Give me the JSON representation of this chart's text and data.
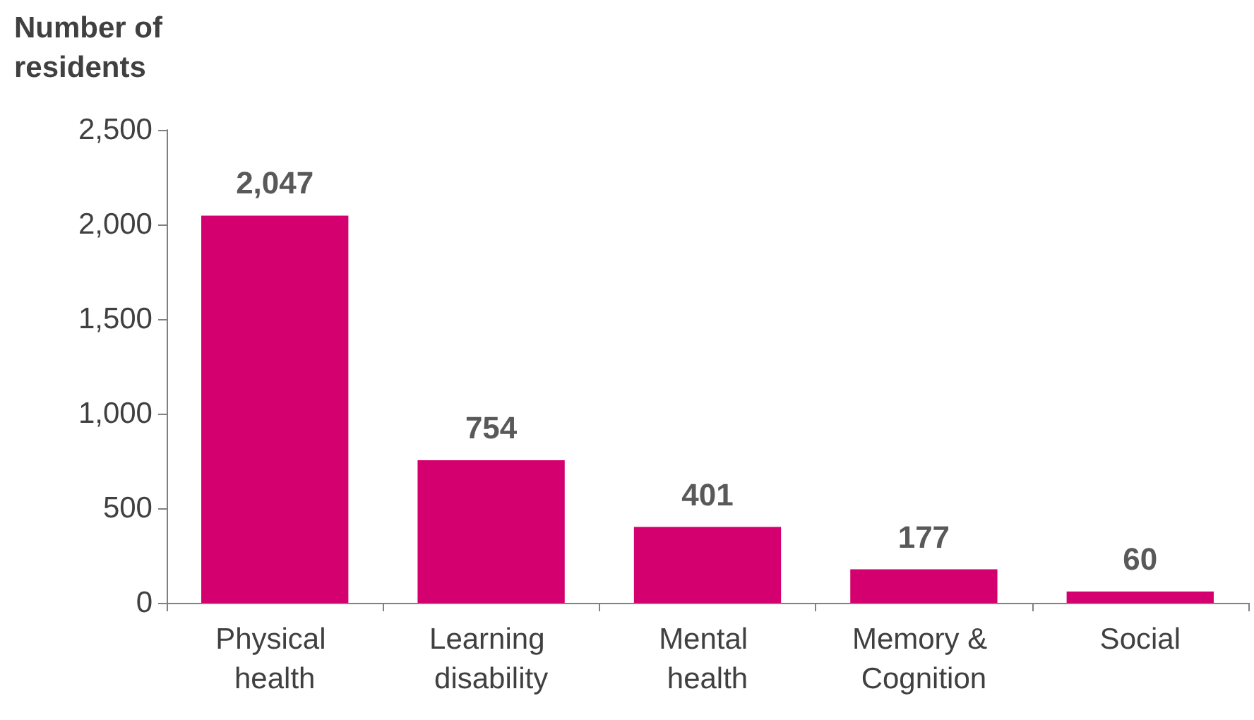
{
  "chart_data": {
    "type": "bar",
    "ylabel": "Number of residents",
    "categories": [
      "Physical health",
      "Learning disability",
      "Mental health",
      "Memory & Cognition",
      "Social"
    ],
    "values": [
      2047,
      754,
      401,
      177,
      60
    ],
    "color": "#d5006f",
    "value_labels": [
      "2,047",
      "754",
      "401",
      "177",
      "60"
    ],
    "ylim": [
      0,
      2500
    ],
    "yticks": [
      0,
      500,
      {
        "value": 1000,
        "label": "1,000"
      },
      {
        "value": 1500,
        "label": "1,500"
      },
      {
        "value": 2000,
        "label": "2,000"
      },
      {
        "value": 2500,
        "label": "2,500"
      }
    ],
    "grid": false
  }
}
